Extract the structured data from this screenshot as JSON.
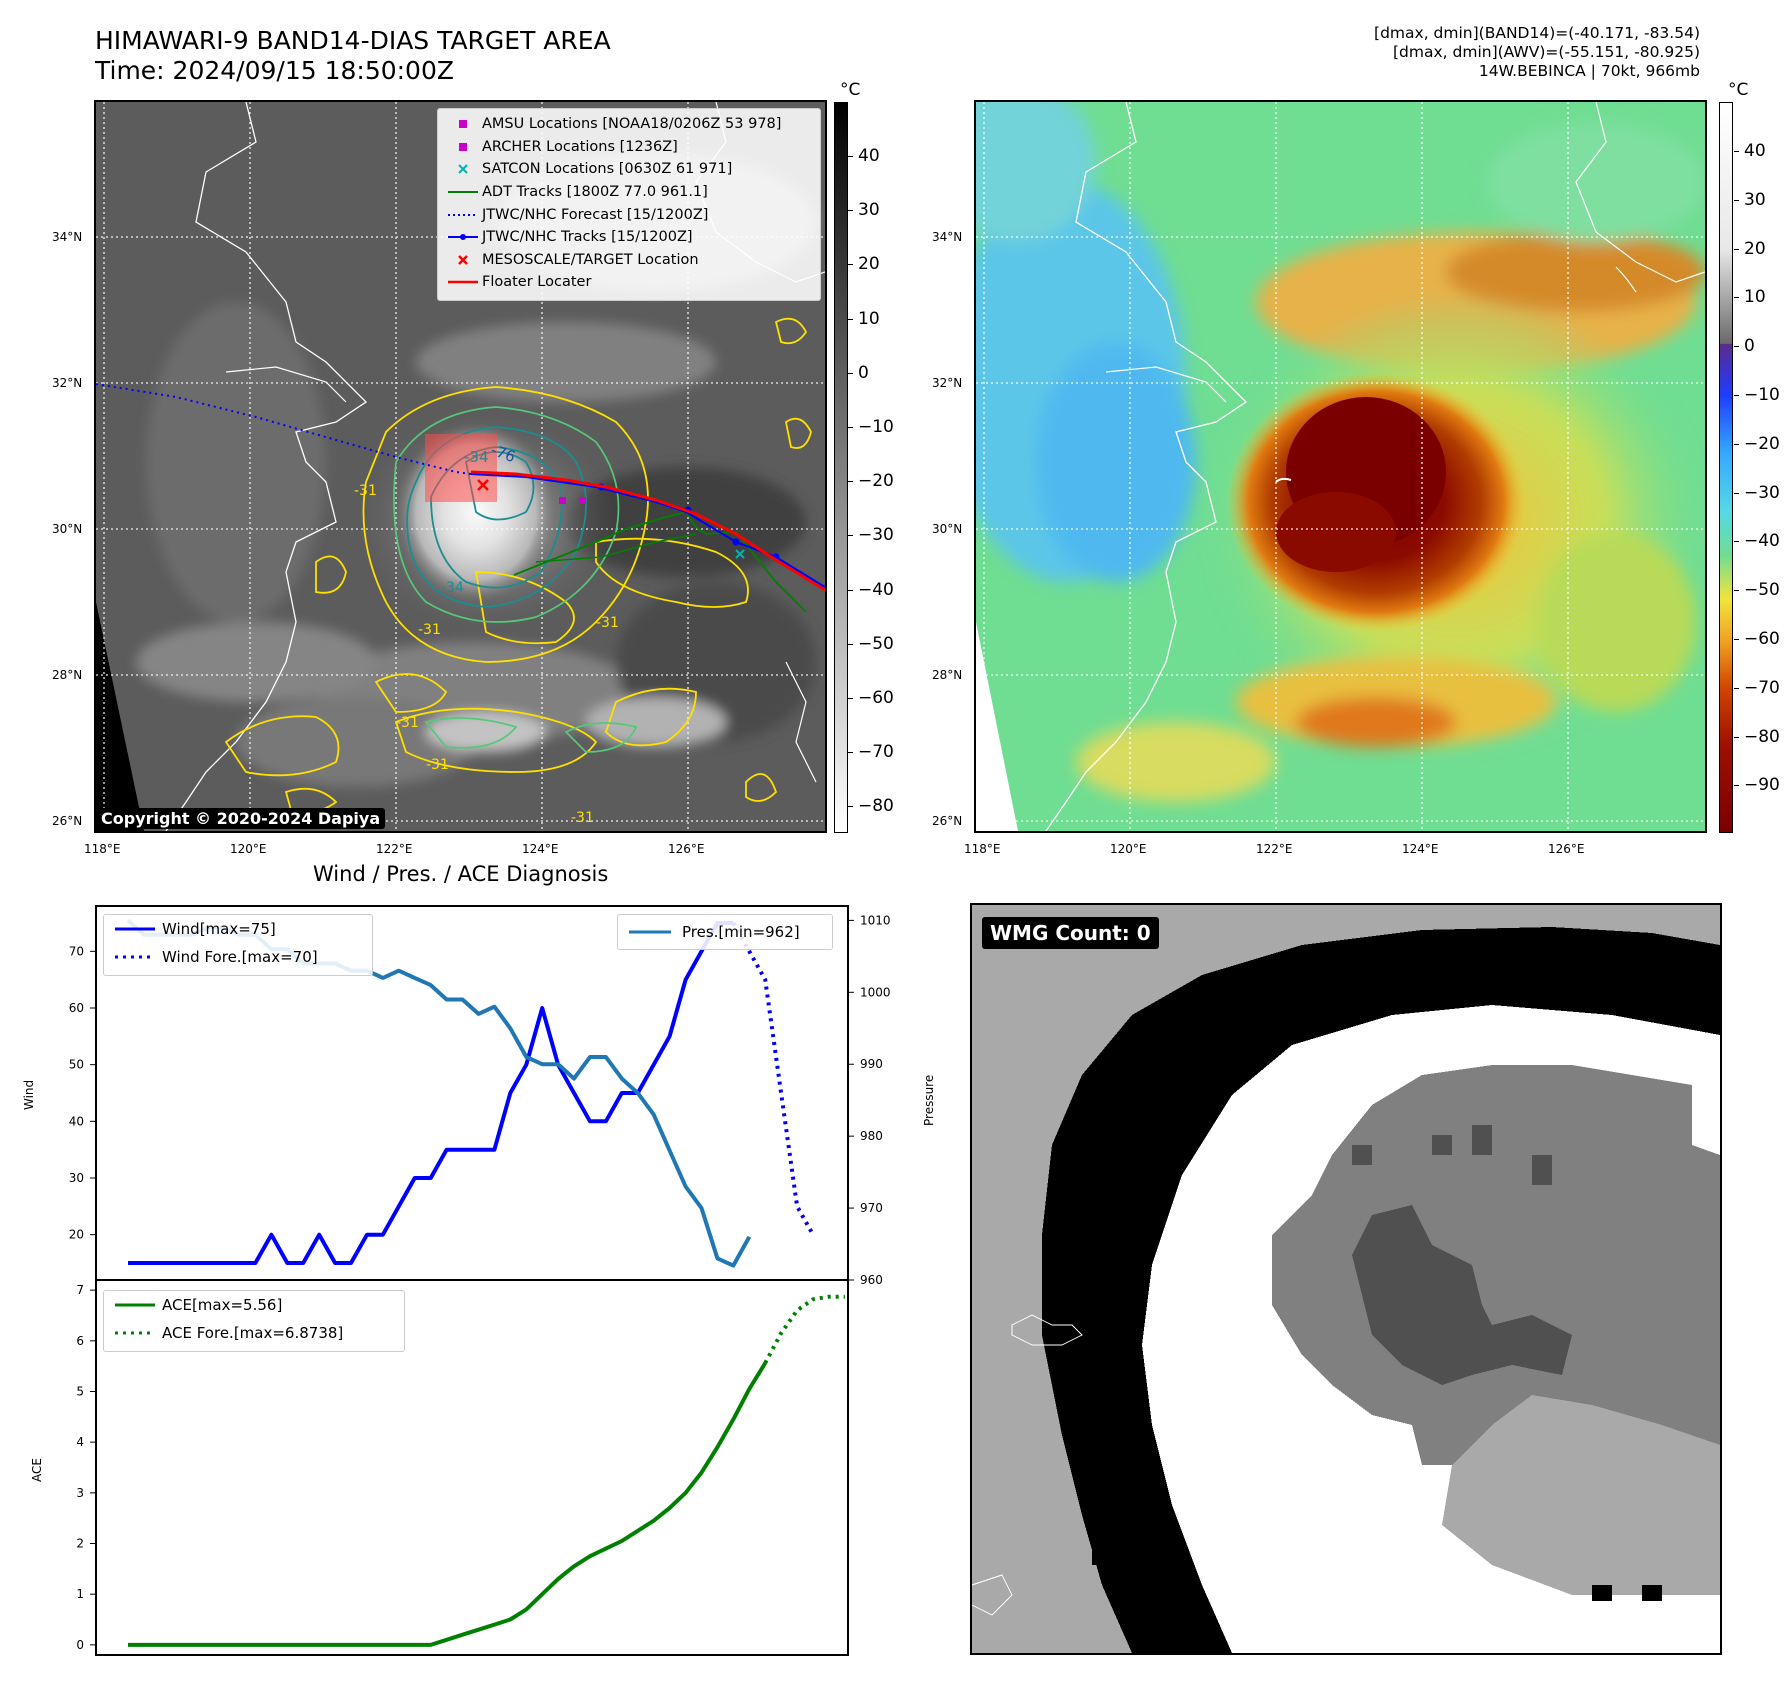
{
  "header": {
    "title_line1": "HIMAWARI-9 BAND14-DIAS TARGET AREA",
    "title_line2": "Time: 2024/09/15 18:50:00Z",
    "info_line1": "[dmax, dmin](BAND14)=(-40.171, -83.54)",
    "info_line2": "[dmax, dmin](AWV)=(-55.151, -80.925)",
    "info_line3": "14W.BEBINCA | 70kt, 966mb"
  },
  "maps": {
    "lon_ticks": [
      "118°E",
      "120°E",
      "122°E",
      "124°E",
      "126°E"
    ],
    "lat_ticks": [
      "34°N",
      "32°N",
      "30°N",
      "28°N",
      "26°N"
    ],
    "copyright": "Copyright © 2020-2024 Dapiya",
    "colorbar_unit": "°C",
    "ir_colorbar_ticks": [
      "40",
      "30",
      "20",
      "10",
      "0",
      "−10",
      "−20",
      "−30",
      "−40",
      "−50",
      "−60",
      "−70",
      "−80"
    ],
    "awv_colorbar_ticks": [
      "40",
      "30",
      "20",
      "10",
      "0",
      "−10",
      "−20",
      "−30",
      "−40",
      "−50",
      "−60",
      "−70",
      "−80",
      "−90"
    ],
    "contour_labels": [
      "-76",
      "-34",
      "-31",
      "-31",
      "-31",
      "-31",
      "-31",
      "-34",
      "-31"
    ],
    "legend": [
      {
        "label": "AMSU Locations [NOAA18/0206Z 53 978]",
        "color": "#c800c8",
        "marker": "square"
      },
      {
        "label": "ARCHER Locations [1236Z]",
        "color": "#c800c8",
        "marker": "square"
      },
      {
        "label": "SATCON Locations [0630Z 61 971]",
        "color": "#00b4b4",
        "marker": "x"
      },
      {
        "label": "ADT Tracks [1800Z 77.0 961.1]",
        "color": "#008000",
        "marker": "line"
      },
      {
        "label": "JTWC/NHC Forecast [15/1200Z]",
        "color": "#0000ff",
        "marker": "dotted"
      },
      {
        "label": "JTWC/NHC Tracks [15/1200Z]",
        "color": "#0000ff",
        "marker": "linedot"
      },
      {
        "label": "MESOSCALE/TARGET Location",
        "color": "#ff0000",
        "marker": "x"
      },
      {
        "label": "Floater Locater",
        "color": "#ff0000",
        "marker": "line"
      }
    ]
  },
  "diagnosis": {
    "title": "Wind / Pres. / ACE Diagnosis",
    "wind_axis_label": "Wind",
    "pressure_axis_label": "Pressure",
    "ace_axis_label": "ACE",
    "legend_wind": "Wind[max=75]",
    "legend_wind_fore": "Wind Fore.[max=70]",
    "legend_pres": "Pres.[min=962]",
    "legend_ace": "ACE[max=5.56]",
    "legend_ace_fore": "ACE Fore.[max=6.8738]"
  },
  "wmg": {
    "badge": "WMG Count: 0"
  },
  "chart_data": [
    {
      "type": "line",
      "title": "Wind / Pres. / ACE Diagnosis",
      "ylabel": "Wind",
      "ylim": [
        12,
        78
      ],
      "yticks": [
        20,
        30,
        40,
        50,
        60,
        70
      ],
      "series": [
        {
          "name": "Wind[max=75]",
          "color": "#0000ff",
          "values": [
            15,
            15,
            15,
            15,
            15,
            15,
            15,
            15,
            15,
            20,
            15,
            15,
            20,
            15,
            15,
            20,
            20,
            25,
            30,
            30,
            35,
            35,
            35,
            35,
            45,
            50,
            60,
            50,
            45,
            40,
            40,
            45,
            45,
            50,
            55,
            65,
            70,
            75,
            75
          ]
        },
        {
          "name": "Wind Fore.[max=70]",
          "color": "#0000ff",
          "style": "dotted",
          "start_index": 38,
          "values": [
            75,
            70,
            65,
            45,
            25,
            20
          ]
        }
      ]
    },
    {
      "type": "line",
      "ylabel": "Pressure",
      "ylim": [
        960,
        1012
      ],
      "yticks": [
        960,
        970,
        980,
        990,
        1000,
        1010
      ],
      "series": [
        {
          "name": "Pres.[min=962]",
          "color": "#1f77b4",
          "values": [
            1010,
            1008,
            1008,
            1008,
            1008,
            1009,
            1009,
            1008,
            1008,
            1006,
            1006,
            1004,
            1004,
            1004,
            1003,
            1003,
            1002,
            1003,
            1002,
            1001,
            999,
            999,
            997,
            998,
            995,
            991,
            990,
            990,
            988,
            991,
            991,
            988,
            986,
            983,
            978,
            973,
            970,
            963,
            962,
            966
          ]
        }
      ]
    },
    {
      "type": "line",
      "ylabel": "ACE",
      "ylim": [
        -0.2,
        7.2
      ],
      "yticks": [
        0,
        1,
        2,
        3,
        4,
        5,
        6,
        7
      ],
      "series": [
        {
          "name": "ACE[max=5.56]",
          "color": "#008000",
          "values": [
            0,
            0,
            0,
            0,
            0,
            0,
            0,
            0,
            0,
            0,
            0,
            0,
            0,
            0,
            0,
            0,
            0,
            0,
            0,
            0,
            0.1,
            0.2,
            0.3,
            0.4,
            0.5,
            0.7,
            1.0,
            1.3,
            1.55,
            1.75,
            1.9,
            2.05,
            2.25,
            2.45,
            2.7,
            3.0,
            3.4,
            3.9,
            4.45,
            5.05,
            5.56
          ]
        },
        {
          "name": "ACE Fore.[max=6.8738]",
          "color": "#008000",
          "style": "dotted",
          "start_index": 40,
          "values": [
            5.56,
            6.15,
            6.6,
            6.82,
            6.87,
            6.87
          ]
        }
      ]
    }
  ]
}
